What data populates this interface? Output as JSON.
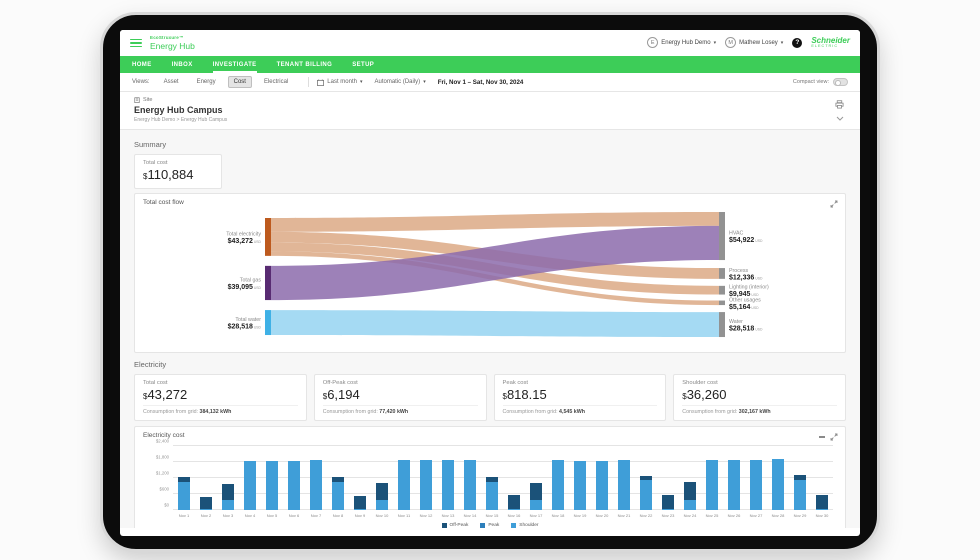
{
  "header": {
    "brand_small": "EcoStruxure™",
    "app_title": "Energy Hub",
    "org_menu": {
      "initial": "E",
      "label": "Energy Hub Demo"
    },
    "user_menu": {
      "initial": "M",
      "label": "Mathew Losey"
    },
    "help_label": "?",
    "logo": {
      "line1": "Schneider",
      "line2": "ELECTRIC"
    }
  },
  "nav": {
    "items": [
      {
        "label": "HOME",
        "active": false
      },
      {
        "label": "INBOX",
        "active": false
      },
      {
        "label": "INVESTIGATE",
        "active": true
      },
      {
        "label": "TENANT BILLING",
        "active": false
      },
      {
        "label": "SETUP",
        "active": false
      }
    ]
  },
  "toolbar": {
    "views_label": "Views:",
    "views": [
      {
        "label": "Asset",
        "selected": false
      },
      {
        "label": "Energy",
        "selected": false
      },
      {
        "label": "Cost",
        "selected": true
      },
      {
        "label": "Electrical",
        "selected": false
      }
    ],
    "period_dropdown": "Last month",
    "granularity_dropdown": "Automatic (Daily)",
    "date_range": "Fri, Nov 1 – Sat, Nov 30, 2024",
    "compact_view_label": "Compact view:"
  },
  "site": {
    "type_label": "Site",
    "name": "Energy Hub Campus",
    "breadcrumb": "Energy Hub Demo > Energy Hub Campus"
  },
  "summary": {
    "heading": "Summary",
    "total_cost_label": "Total cost",
    "currency": "$",
    "total_cost_value": "110,884"
  },
  "electricity": {
    "heading": "Electricity",
    "cards": [
      {
        "label": "Total cost",
        "currency": "$",
        "value": "43,272",
        "footer_label": "Consumption from grid:",
        "footer_value": "384,132 kWh"
      },
      {
        "label": "Off-Peak cost",
        "currency": "$",
        "value": "6,194",
        "footer_label": "Consumption from grid:",
        "footer_value": "77,420 kWh"
      },
      {
        "label": "Peak cost",
        "currency": "$",
        "value": "818.15",
        "footer_label": "Consumption from grid:",
        "footer_value": "4,545 kWh"
      },
      {
        "label": "Shoulder cost",
        "currency": "$",
        "value": "36,260",
        "footer_label": "Consumption from grid:",
        "footer_value": "302,167 kWh"
      }
    ]
  },
  "chart_data": [
    {
      "type": "sankey",
      "title": "Total cost flow",
      "unit": "USD",
      "nodes": {
        "left": [
          {
            "name": "Total electricity",
            "value": 43272,
            "display": "$43,272",
            "node_color": "#bd5a1e",
            "flow_color": "#d69a6f",
            "flow_opacity": 0.72
          },
          {
            "name": "Total gas",
            "value": 39095,
            "display": "$39,095",
            "node_color": "#582b72",
            "flow_color": "#8c6bab",
            "flow_opacity": 0.85
          },
          {
            "name": "Total water",
            "value": 28518,
            "display": "$28,518",
            "node_color": "#3fb1e6",
            "flow_color": "#a5daf3",
            "flow_opacity": 1
          }
        ],
        "right": [
          {
            "name": "HVAC",
            "value": 54922,
            "display": "$54,922"
          },
          {
            "name": "Process",
            "value": 12336,
            "display": "$12,336"
          },
          {
            "name": "Lighting (interior)",
            "value": 9945,
            "display": "$9,945"
          },
          {
            "name": "Other usages",
            "value": 5164,
            "display": "$5,164"
          },
          {
            "name": "Water",
            "value": 28518,
            "display": "$28,518"
          }
        ],
        "right_node_color": "#929292"
      },
      "links": [
        {
          "source": 0,
          "target": 0,
          "value": 15827
        },
        {
          "source": 0,
          "target": 1,
          "value": 12336
        },
        {
          "source": 0,
          "target": 2,
          "value": 9945
        },
        {
          "source": 0,
          "target": 3,
          "value": 5164
        },
        {
          "source": 1,
          "target": 0,
          "value": 39095
        },
        {
          "source": 2,
          "target": 4,
          "value": 28518
        }
      ]
    },
    {
      "type": "bar",
      "stacked": true,
      "title": "Electricity cost",
      "categories": [
        "Nov 1",
        "Nov 2",
        "Nov 3",
        "Nov 4",
        "Nov 5",
        "Nov 6",
        "Nov 7",
        "Nov 8",
        "Nov 9",
        "Nov 10",
        "Nov 11",
        "Nov 12",
        "Nov 13",
        "Nov 14",
        "Nov 15",
        "Nov 16",
        "Nov 17",
        "Nov 18",
        "Nov 19",
        "Nov 20",
        "Nov 21",
        "Nov 22",
        "Nov 23",
        "Nov 24",
        "Nov 25",
        "Nov 26",
        "Nov 27",
        "Nov 28",
        "Nov 29",
        "Nov 30"
      ],
      "series": [
        {
          "name": "Off-Peak",
          "color": "#1b5279",
          "values": [
            180,
            480,
            600,
            0,
            0,
            0,
            0,
            190,
            520,
            620,
            0,
            0,
            0,
            0,
            190,
            530,
            620,
            0,
            0,
            0,
            0,
            160,
            550,
            670,
            0,
            0,
            0,
            0,
            170,
            550
          ]
        },
        {
          "name": "Peak",
          "color": "#2d7fbb",
          "values": [
            0,
            0,
            0,
            0,
            0,
            0,
            0,
            0,
            0,
            0,
            0,
            0,
            0,
            0,
            0,
            0,
            0,
            0,
            0,
            0,
            0,
            0,
            0,
            0,
            0,
            0,
            0,
            0,
            0,
            0
          ]
        },
        {
          "name": "Shoulder",
          "color": "#3f9ed8",
          "values": [
            1050,
            20,
            380,
            1850,
            1850,
            1850,
            1870,
            1040,
            20,
            380,
            1880,
            1870,
            1860,
            1880,
            1040,
            20,
            380,
            1890,
            1850,
            1850,
            1870,
            1120,
            20,
            380,
            1890,
            1860,
            1880,
            1900,
            1130,
            20
          ]
        }
      ],
      "ylim": [
        0,
        2400
      ],
      "yticks": [
        "$0",
        "$600",
        "$1,200",
        "$1,800",
        "$2,400"
      ],
      "legend_position": "bottom"
    }
  ]
}
